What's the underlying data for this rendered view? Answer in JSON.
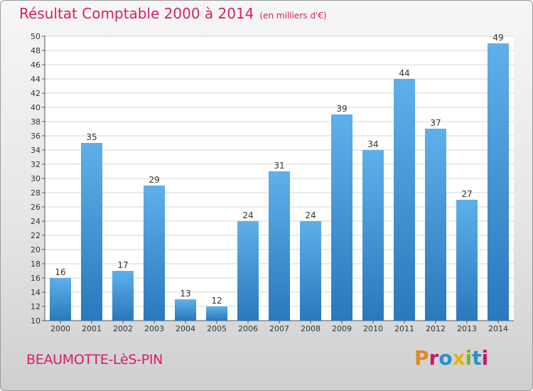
{
  "chart_data": {
    "type": "bar",
    "title": "Résultat Comptable 2000 à 2014",
    "subtitle": "(en milliers d'€)",
    "categories": [
      "2000",
      "2001",
      "2002",
      "2003",
      "2004",
      "2005",
      "2006",
      "2007",
      "2008",
      "2009",
      "2010",
      "2011",
      "2012",
      "2013",
      "2014"
    ],
    "values": [
      16,
      35,
      17,
      29,
      13,
      12,
      24,
      31,
      24,
      39,
      34,
      44,
      37,
      27,
      49
    ],
    "ylim": [
      10,
      50
    ],
    "yticks": [
      10,
      12,
      14,
      16,
      18,
      20,
      22,
      24,
      26,
      28,
      30,
      32,
      34,
      36,
      38,
      40,
      42,
      44,
      46,
      48,
      50
    ],
    "grid": true,
    "bar_color": "#3a8fd4"
  },
  "footer": {
    "town": "BEAUMOTTE-LèS-PIN",
    "logo_letters": [
      "P",
      "r",
      "o",
      "x",
      "i",
      "t",
      "i"
    ],
    "logo_colors": [
      "#e08a1c",
      "#c7186f",
      "#2a8fd0",
      "#e3b514",
      "#7bb32e",
      "#2a8fd0",
      "#c7186f"
    ]
  },
  "colors": {
    "accent": "#d81d6b"
  }
}
